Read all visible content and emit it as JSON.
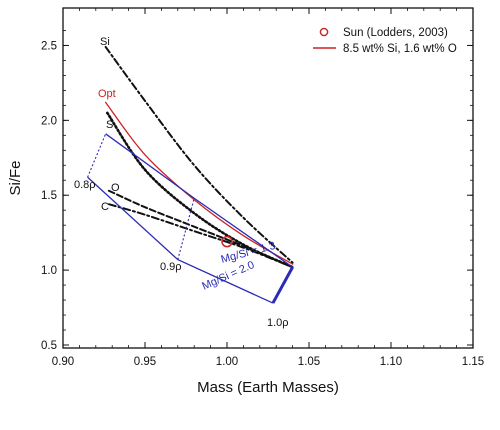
{
  "chart_data": {
    "type": "line",
    "xlabel": "Mass (Earth Masses)",
    "ylabel": "Si/Fe",
    "xlim": [
      0.9,
      1.15
    ],
    "ylim": [
      0.48,
      2.75
    ],
    "x_ticks": [
      "0.90",
      "0.95",
      "1.00",
      "1.05",
      "1.10",
      "1.15"
    ],
    "x_tick_values": [
      0.9,
      0.95,
      1.0,
      1.05,
      1.1,
      1.15
    ],
    "y_ticks": [
      "0.5",
      "1.0",
      "1.5",
      "2.0",
      "2.5"
    ],
    "y_tick_values": [
      0.5,
      1.0,
      1.5,
      2.0,
      2.5
    ],
    "grid": false,
    "legend_position": "top-right",
    "legend": [
      {
        "label": "Sun (Lodders, 2003)",
        "marker": "open-circle",
        "color": "#cc2222"
      },
      {
        "label": "8.5 wt% Si, 1.6 wt% O",
        "marker": "line",
        "color": "#cc2222"
      }
    ],
    "series": [
      {
        "name": "Si",
        "color": "#111111",
        "dash": "dashdot",
        "points": [
          [
            0.926,
            2.49
          ],
          [
            0.95,
            2.13
          ],
          [
            0.98,
            1.7
          ],
          [
            1.01,
            1.35
          ],
          [
            1.04,
            1.05
          ]
        ]
      },
      {
        "name": "Opt",
        "color": "#cc2222",
        "dash": "solid",
        "points": [
          [
            0.926,
            2.12
          ],
          [
            0.95,
            1.77
          ],
          [
            0.98,
            1.47
          ],
          [
            1.01,
            1.23
          ],
          [
            1.04,
            1.04
          ]
        ]
      },
      {
        "name": "S",
        "color": "#111111",
        "dash": "dotted",
        "points": [
          [
            0.927,
            2.05
          ],
          [
            0.95,
            1.67
          ],
          [
            0.98,
            1.38
          ],
          [
            1.01,
            1.17
          ],
          [
            1.04,
            1.02
          ]
        ]
      },
      {
        "name": "O",
        "color": "#111111",
        "dash": "dashed",
        "points": [
          [
            0.928,
            1.53
          ],
          [
            0.95,
            1.42
          ],
          [
            0.98,
            1.29
          ],
          [
            1.01,
            1.16
          ],
          [
            1.04,
            1.02
          ]
        ]
      },
      {
        "name": "C",
        "color": "#111111",
        "dash": "dashdot",
        "points": [
          [
            0.928,
            1.44
          ],
          [
            0.95,
            1.37
          ],
          [
            0.98,
            1.26
          ],
          [
            1.01,
            1.15
          ],
          [
            1.04,
            1.02
          ]
        ]
      }
    ],
    "sun_point": {
      "x": 1.0,
      "y": 1.19
    },
    "grid_box": {
      "color": "#2b2bb5",
      "mgsi_lines": [
        {
          "label": "Mg/Si = 1.3",
          "points": [
            [
              0.926,
              1.91
            ],
            [
              0.98,
              1.48
            ],
            [
              1.04,
              1.02
            ]
          ]
        },
        {
          "label": "Mg/Si = 2.0",
          "points": [
            [
              0.915,
              1.62
            ],
            [
              0.97,
              1.07
            ],
            [
              1.028,
              0.78
            ]
          ]
        }
      ],
      "rho_lines": [
        {
          "label": "0.8ρ",
          "points": [
            [
              0.915,
              1.62
            ],
            [
              0.926,
              1.91
            ]
          ]
        },
        {
          "label": "0.9ρ",
          "points": [
            [
              0.97,
              1.07
            ],
            [
              0.98,
              1.48
            ]
          ]
        },
        {
          "label": "1.0ρ",
          "points": [
            [
              1.028,
              0.78
            ],
            [
              1.04,
              1.02
            ]
          ]
        }
      ]
    },
    "annotations": {
      "si_label": "Si",
      "opt_label": "Opt",
      "s_label": "S",
      "o_label": "O",
      "c_label": "C",
      "rho08": "0.8ρ",
      "rho09": "0.9ρ",
      "rho10": "1.0ρ",
      "mgsi13": "Mg/Si = 1.3",
      "mgsi20": "Mg/Si = 2.0"
    }
  }
}
